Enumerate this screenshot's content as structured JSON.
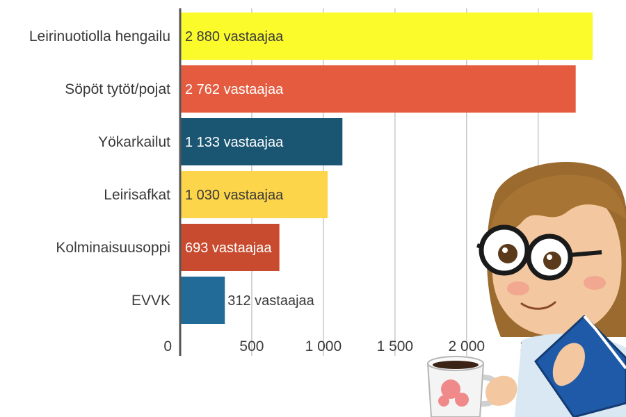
{
  "chart_data": {
    "type": "bar",
    "orientation": "horizontal",
    "categories": [
      "Leirinuotiolla hengailu",
      "Söpöt tytöt/pojat",
      "Yökarkailut",
      "Leirisafkat",
      "Kolminaisuusoppi",
      "EVVK"
    ],
    "values": [
      2880,
      2762,
      1133,
      1030,
      693,
      312
    ],
    "data_labels": [
      "2 880 vastaajaa",
      "2 762 vastaajaa",
      "1 133 vastaajaa",
      "1 030 vastaajaa",
      "693 vastaajaa",
      "312 vastaajaa"
    ],
    "colors": [
      "#fbfb2c",
      "#e55b3f",
      "#1a5572",
      "#fdd54a",
      "#c84b2f",
      "#226a98"
    ],
    "label_colors": [
      "#3a3a3a",
      "#ffffff",
      "#ffffff",
      "#3a3a3a",
      "#ffffff",
      "#3a3a3a"
    ],
    "label_outside": [
      false,
      false,
      false,
      false,
      false,
      true
    ],
    "x_ticks": [
      0,
      500,
      1000,
      1500,
      2000,
      2500
    ],
    "x_tick_labels": [
      "0",
      "500",
      "1 000",
      "1 500",
      "2 000",
      "2 500"
    ],
    "xlim": [
      0,
      2880
    ],
    "grid": true,
    "legend": "none"
  },
  "illustration": {
    "icon": "girl-with-glasses-coffee-mug-and-book-icon"
  }
}
